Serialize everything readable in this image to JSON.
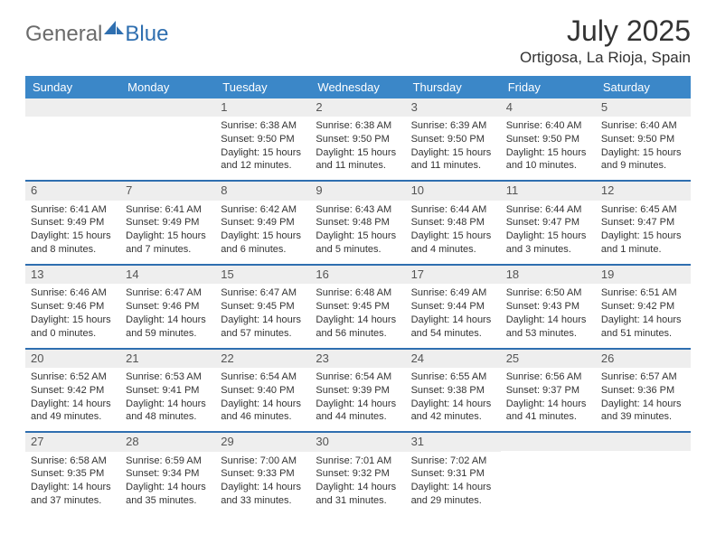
{
  "brand": {
    "part1": "General",
    "part2": "Blue"
  },
  "title": "July 2025",
  "location": "Ortigosa, La Rioja, Spain",
  "colors": {
    "header_bg": "#3b87c8",
    "rule": "#2f6fb0",
    "daynum_bg": "#eeeeee",
    "text": "#333333",
    "logo_gray": "#6b6b6b",
    "logo_blue": "#2f6fb0",
    "page_bg": "#ffffff"
  },
  "fonts": {
    "title_size_pt": 24,
    "location_size_pt": 13,
    "dow_size_pt": 10,
    "daynum_size_pt": 10,
    "body_size_pt": 8
  },
  "dows": [
    "Sunday",
    "Monday",
    "Tuesday",
    "Wednesday",
    "Thursday",
    "Friday",
    "Saturday"
  ],
  "weeks": [
    [
      null,
      null,
      {
        "n": "1",
        "sunrise": "6:38 AM",
        "sunset": "9:50 PM",
        "dl1": "Daylight: 15 hours",
        "dl2": "and 12 minutes."
      },
      {
        "n": "2",
        "sunrise": "6:38 AM",
        "sunset": "9:50 PM",
        "dl1": "Daylight: 15 hours",
        "dl2": "and 11 minutes."
      },
      {
        "n": "3",
        "sunrise": "6:39 AM",
        "sunset": "9:50 PM",
        "dl1": "Daylight: 15 hours",
        "dl2": "and 11 minutes."
      },
      {
        "n": "4",
        "sunrise": "6:40 AM",
        "sunset": "9:50 PM",
        "dl1": "Daylight: 15 hours",
        "dl2": "and 10 minutes."
      },
      {
        "n": "5",
        "sunrise": "6:40 AM",
        "sunset": "9:50 PM",
        "dl1": "Daylight: 15 hours",
        "dl2": "and 9 minutes."
      }
    ],
    [
      {
        "n": "6",
        "sunrise": "6:41 AM",
        "sunset": "9:49 PM",
        "dl1": "Daylight: 15 hours",
        "dl2": "and 8 minutes."
      },
      {
        "n": "7",
        "sunrise": "6:41 AM",
        "sunset": "9:49 PM",
        "dl1": "Daylight: 15 hours",
        "dl2": "and 7 minutes."
      },
      {
        "n": "8",
        "sunrise": "6:42 AM",
        "sunset": "9:49 PM",
        "dl1": "Daylight: 15 hours",
        "dl2": "and 6 minutes."
      },
      {
        "n": "9",
        "sunrise": "6:43 AM",
        "sunset": "9:48 PM",
        "dl1": "Daylight: 15 hours",
        "dl2": "and 5 minutes."
      },
      {
        "n": "10",
        "sunrise": "6:44 AM",
        "sunset": "9:48 PM",
        "dl1": "Daylight: 15 hours",
        "dl2": "and 4 minutes."
      },
      {
        "n": "11",
        "sunrise": "6:44 AM",
        "sunset": "9:47 PM",
        "dl1": "Daylight: 15 hours",
        "dl2": "and 3 minutes."
      },
      {
        "n": "12",
        "sunrise": "6:45 AM",
        "sunset": "9:47 PM",
        "dl1": "Daylight: 15 hours",
        "dl2": "and 1 minute."
      }
    ],
    [
      {
        "n": "13",
        "sunrise": "6:46 AM",
        "sunset": "9:46 PM",
        "dl1": "Daylight: 15 hours",
        "dl2": "and 0 minutes."
      },
      {
        "n": "14",
        "sunrise": "6:47 AM",
        "sunset": "9:46 PM",
        "dl1": "Daylight: 14 hours",
        "dl2": "and 59 minutes."
      },
      {
        "n": "15",
        "sunrise": "6:47 AM",
        "sunset": "9:45 PM",
        "dl1": "Daylight: 14 hours",
        "dl2": "and 57 minutes."
      },
      {
        "n": "16",
        "sunrise": "6:48 AM",
        "sunset": "9:45 PM",
        "dl1": "Daylight: 14 hours",
        "dl2": "and 56 minutes."
      },
      {
        "n": "17",
        "sunrise": "6:49 AM",
        "sunset": "9:44 PM",
        "dl1": "Daylight: 14 hours",
        "dl2": "and 54 minutes."
      },
      {
        "n": "18",
        "sunrise": "6:50 AM",
        "sunset": "9:43 PM",
        "dl1": "Daylight: 14 hours",
        "dl2": "and 53 minutes."
      },
      {
        "n": "19",
        "sunrise": "6:51 AM",
        "sunset": "9:42 PM",
        "dl1": "Daylight: 14 hours",
        "dl2": "and 51 minutes."
      }
    ],
    [
      {
        "n": "20",
        "sunrise": "6:52 AM",
        "sunset": "9:42 PM",
        "dl1": "Daylight: 14 hours",
        "dl2": "and 49 minutes."
      },
      {
        "n": "21",
        "sunrise": "6:53 AM",
        "sunset": "9:41 PM",
        "dl1": "Daylight: 14 hours",
        "dl2": "and 48 minutes."
      },
      {
        "n": "22",
        "sunrise": "6:54 AM",
        "sunset": "9:40 PM",
        "dl1": "Daylight: 14 hours",
        "dl2": "and 46 minutes."
      },
      {
        "n": "23",
        "sunrise": "6:54 AM",
        "sunset": "9:39 PM",
        "dl1": "Daylight: 14 hours",
        "dl2": "and 44 minutes."
      },
      {
        "n": "24",
        "sunrise": "6:55 AM",
        "sunset": "9:38 PM",
        "dl1": "Daylight: 14 hours",
        "dl2": "and 42 minutes."
      },
      {
        "n": "25",
        "sunrise": "6:56 AM",
        "sunset": "9:37 PM",
        "dl1": "Daylight: 14 hours",
        "dl2": "and 41 minutes."
      },
      {
        "n": "26",
        "sunrise": "6:57 AM",
        "sunset": "9:36 PM",
        "dl1": "Daylight: 14 hours",
        "dl2": "and 39 minutes."
      }
    ],
    [
      {
        "n": "27",
        "sunrise": "6:58 AM",
        "sunset": "9:35 PM",
        "dl1": "Daylight: 14 hours",
        "dl2": "and 37 minutes."
      },
      {
        "n": "28",
        "sunrise": "6:59 AM",
        "sunset": "9:34 PM",
        "dl1": "Daylight: 14 hours",
        "dl2": "and 35 minutes."
      },
      {
        "n": "29",
        "sunrise": "7:00 AM",
        "sunset": "9:33 PM",
        "dl1": "Daylight: 14 hours",
        "dl2": "and 33 minutes."
      },
      {
        "n": "30",
        "sunrise": "7:01 AM",
        "sunset": "9:32 PM",
        "dl1": "Daylight: 14 hours",
        "dl2": "and 31 minutes."
      },
      {
        "n": "31",
        "sunrise": "7:02 AM",
        "sunset": "9:31 PM",
        "dl1": "Daylight: 14 hours",
        "dl2": "and 29 minutes."
      },
      null,
      null
    ]
  ],
  "labels": {
    "sunrise": "Sunrise: ",
    "sunset": "Sunset: "
  }
}
